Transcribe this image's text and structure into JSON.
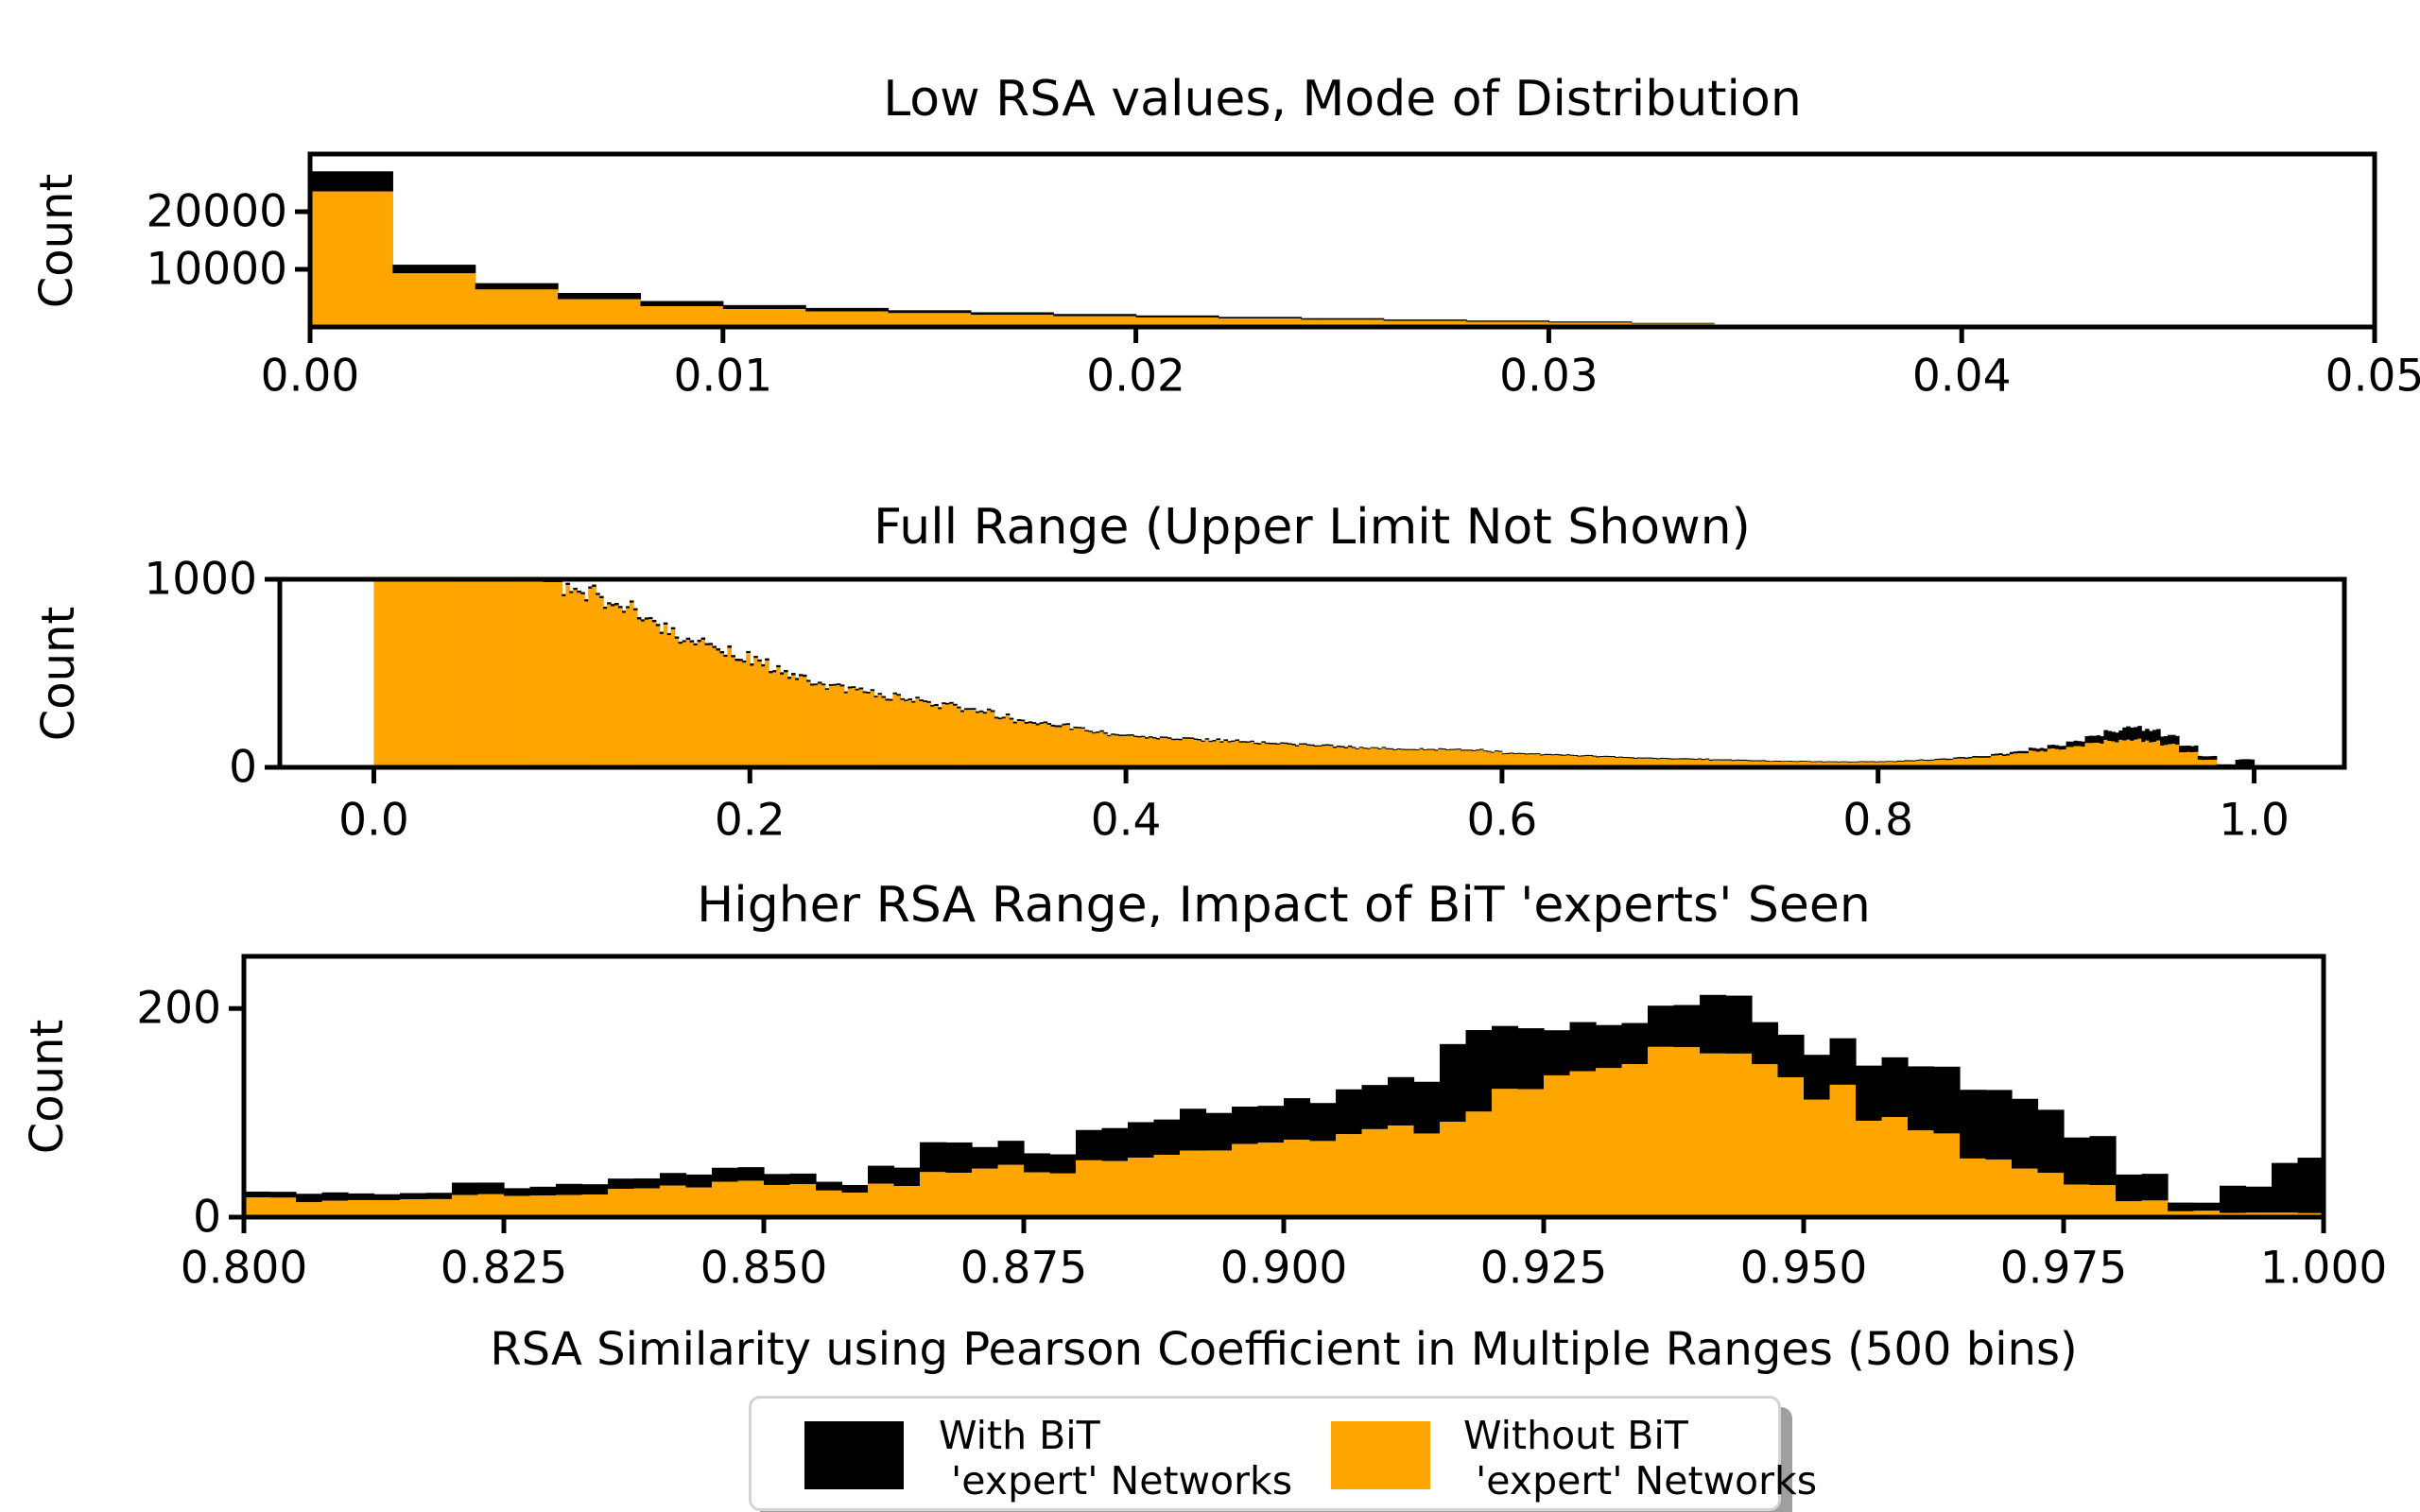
{
  "figure": {
    "background": "#ffffff",
    "xlabel": "RSA Similarity using Pearson Coefficient in Multiple Ranges (500 bins)",
    "colors": {
      "with_bit": "#000000",
      "without_bit": "#FFA500",
      "axis": "#000000"
    },
    "legend": {
      "position": "bottom-center",
      "entries": [
        {
          "swatch_color": "#000000",
          "label_line1": "With BiT",
          "label_line2": " 'expert' Networks"
        },
        {
          "swatch_color": "#FFA500",
          "label_line1": "Without BiT",
          "label_line2": " 'expert' Networks"
        }
      ]
    }
  },
  "chart_data": [
    {
      "type": "bar",
      "subtype": "stacked-histogram",
      "title": "Low RSA values, Mode of Distribution",
      "ylabel": "Count",
      "xlim": [
        0.0,
        0.05
      ],
      "ylim": [
        0,
        30000
      ],
      "grid": false,
      "bin_start": 0.0,
      "bin_width": 0.002,
      "xticks": [
        0.0,
        0.01,
        0.02,
        0.03,
        0.04,
        0.05
      ],
      "xtick_labels": [
        "0.00",
        "0.01",
        "0.02",
        "0.03",
        "0.04",
        "0.05"
      ],
      "yticks": [
        10000,
        20000
      ],
      "ytick_labels": [
        "10000",
        "20000"
      ],
      "render": {
        "sub_bins": 1,
        "jitter": 0
      },
      "series": [
        {
          "name": "Without BiT 'expert' Networks",
          "color": "#FFA500",
          "values": [
            23500,
            9300,
            6500,
            4800,
            3600,
            3100,
            2700,
            2400,
            2100,
            1850,
            1650,
            1450,
            1250,
            1050,
            900,
            750,
            550,
            0,
            0,
            0,
            0,
            0,
            0,
            0,
            0
          ]
        },
        {
          "name": "With BiT 'expert' Networks (stacked on top)",
          "color": "#000000",
          "values": [
            3500,
            1500,
            1100,
            1100,
            900,
            700,
            600,
            500,
            450,
            400,
            350,
            300,
            280,
            250,
            220,
            200,
            150,
            0,
            0,
            0,
            0,
            0,
            0,
            0,
            0
          ]
        }
      ]
    },
    {
      "type": "bar",
      "subtype": "stacked-histogram",
      "title": "Full Range (Upper Limit Not Shown)",
      "ylabel": "Count",
      "xlim": [
        -0.05,
        1.048
      ],
      "ylim": [
        0,
        1000
      ],
      "grid": false,
      "clipped_at_top": true,
      "bin_start": 0.0,
      "bin_width": 0.01,
      "xticks": [
        0.0,
        0.2,
        0.4,
        0.6,
        0.8,
        1.0
      ],
      "xtick_labels": [
        "0.0",
        "0.2",
        "0.4",
        "0.6",
        "0.8",
        "1.0"
      ],
      "yticks": [
        0,
        1000
      ],
      "ytick_labels": [
        "0",
        "1000"
      ],
      "render": {
        "sub_bins": 5,
        "jitter": 0.05
      },
      "series": [
        {
          "name": "Without BiT 'expert' Networks",
          "color": "#FFA500",
          "values": [
            1000,
            1000,
            1000,
            1000,
            1000,
            1000,
            1000,
            1000,
            1000,
            985,
            955,
            920,
            880,
            845,
            800,
            735,
            690,
            650,
            615,
            585,
            555,
            515,
            480,
            455,
            430,
            410,
            390,
            370,
            350,
            335,
            325,
            305,
            290,
            265,
            240,
            225,
            215,
            200,
            185,
            170,
            160,
            155,
            150,
            145,
            140,
            135,
            130,
            125,
            120,
            115,
            110,
            105,
            100,
            98,
            95,
            93,
            92,
            91,
            90,
            80,
            70,
            67,
            64,
            62,
            58,
            55,
            50,
            47,
            44,
            42,
            40,
            37,
            35,
            32,
            30,
            29,
            28,
            27,
            26,
            27,
            28,
            31,
            35,
            40,
            46,
            53,
            62,
            72,
            85,
            98,
            112,
            126,
            140,
            146,
            138,
            120,
            82,
            40,
            8,
            2
          ]
        },
        {
          "name": "With BiT 'expert' Networks (stacked on top)",
          "color": "#000000",
          "values": [
            10,
            10,
            10,
            10,
            10,
            10,
            10,
            10,
            10,
            12,
            12,
            12,
            12,
            12,
            12,
            12,
            12,
            12,
            12,
            12,
            12,
            12,
            12,
            10,
            10,
            10,
            10,
            10,
            10,
            10,
            10,
            10,
            10,
            10,
            10,
            10,
            10,
            8,
            8,
            8,
            8,
            8,
            8,
            8,
            8,
            8,
            8,
            8,
            8,
            8,
            8,
            8,
            6,
            6,
            6,
            6,
            6,
            6,
            6,
            6,
            6,
            6,
            6,
            6,
            6,
            6,
            6,
            6,
            6,
            6,
            6,
            6,
            6,
            6,
            5,
            5,
            5,
            5,
            5,
            5,
            5,
            6,
            6,
            7,
            8,
            9,
            10,
            12,
            16,
            20,
            28,
            38,
            52,
            68,
            62,
            48,
            34,
            20,
            8,
            40
          ]
        }
      ]
    },
    {
      "type": "bar",
      "subtype": "stacked-histogram",
      "title": "Higher RSA Range, Impact of BiT 'experts' Seen",
      "ylabel": "Count",
      "xlim": [
        0.8,
        1.0
      ],
      "ylim": [
        0,
        250
      ],
      "grid": false,
      "bin_start": 0.8,
      "bin_width": 0.005,
      "xticks": [
        0.8,
        0.825,
        0.85,
        0.875,
        0.9,
        0.925,
        0.95,
        0.975,
        1.0
      ],
      "xtick_labels": [
        "0.800",
        "0.825",
        "0.850",
        "0.875",
        "0.900",
        "0.925",
        "0.950",
        "0.975",
        "1.000"
      ],
      "yticks": [
        0,
        200
      ],
      "ytick_labels": [
        "0",
        "200"
      ],
      "render": {
        "sub_bins": 2,
        "jitter": 0.07
      },
      "series": [
        {
          "name": "Without BiT 'expert' Networks",
          "color": "#FFA500",
          "values": [
            18,
            15,
            16,
            18,
            22,
            20,
            22,
            26,
            30,
            34,
            32,
            24,
            30,
            42,
            48,
            45,
            52,
            58,
            62,
            68,
            72,
            80,
            85,
            95,
            120,
            140,
            148,
            155,
            150,
            138,
            120,
            95,
            78,
            58,
            44,
            30,
            16,
            6,
            4,
            4
          ]
        },
        {
          "name": "With BiT 'expert' Networks (stacked on top)",
          "color": "#000000",
          "values": [
            6,
            8,
            6,
            6,
            12,
            8,
            10,
            10,
            12,
            14,
            10,
            8,
            18,
            28,
            22,
            18,
            30,
            35,
            38,
            35,
            38,
            42,
            48,
            75,
            60,
            45,
            42,
            40,
            55,
            40,
            42,
            55,
            60,
            70,
            65,
            48,
            26,
            8,
            25,
            50
          ]
        }
      ]
    }
  ]
}
